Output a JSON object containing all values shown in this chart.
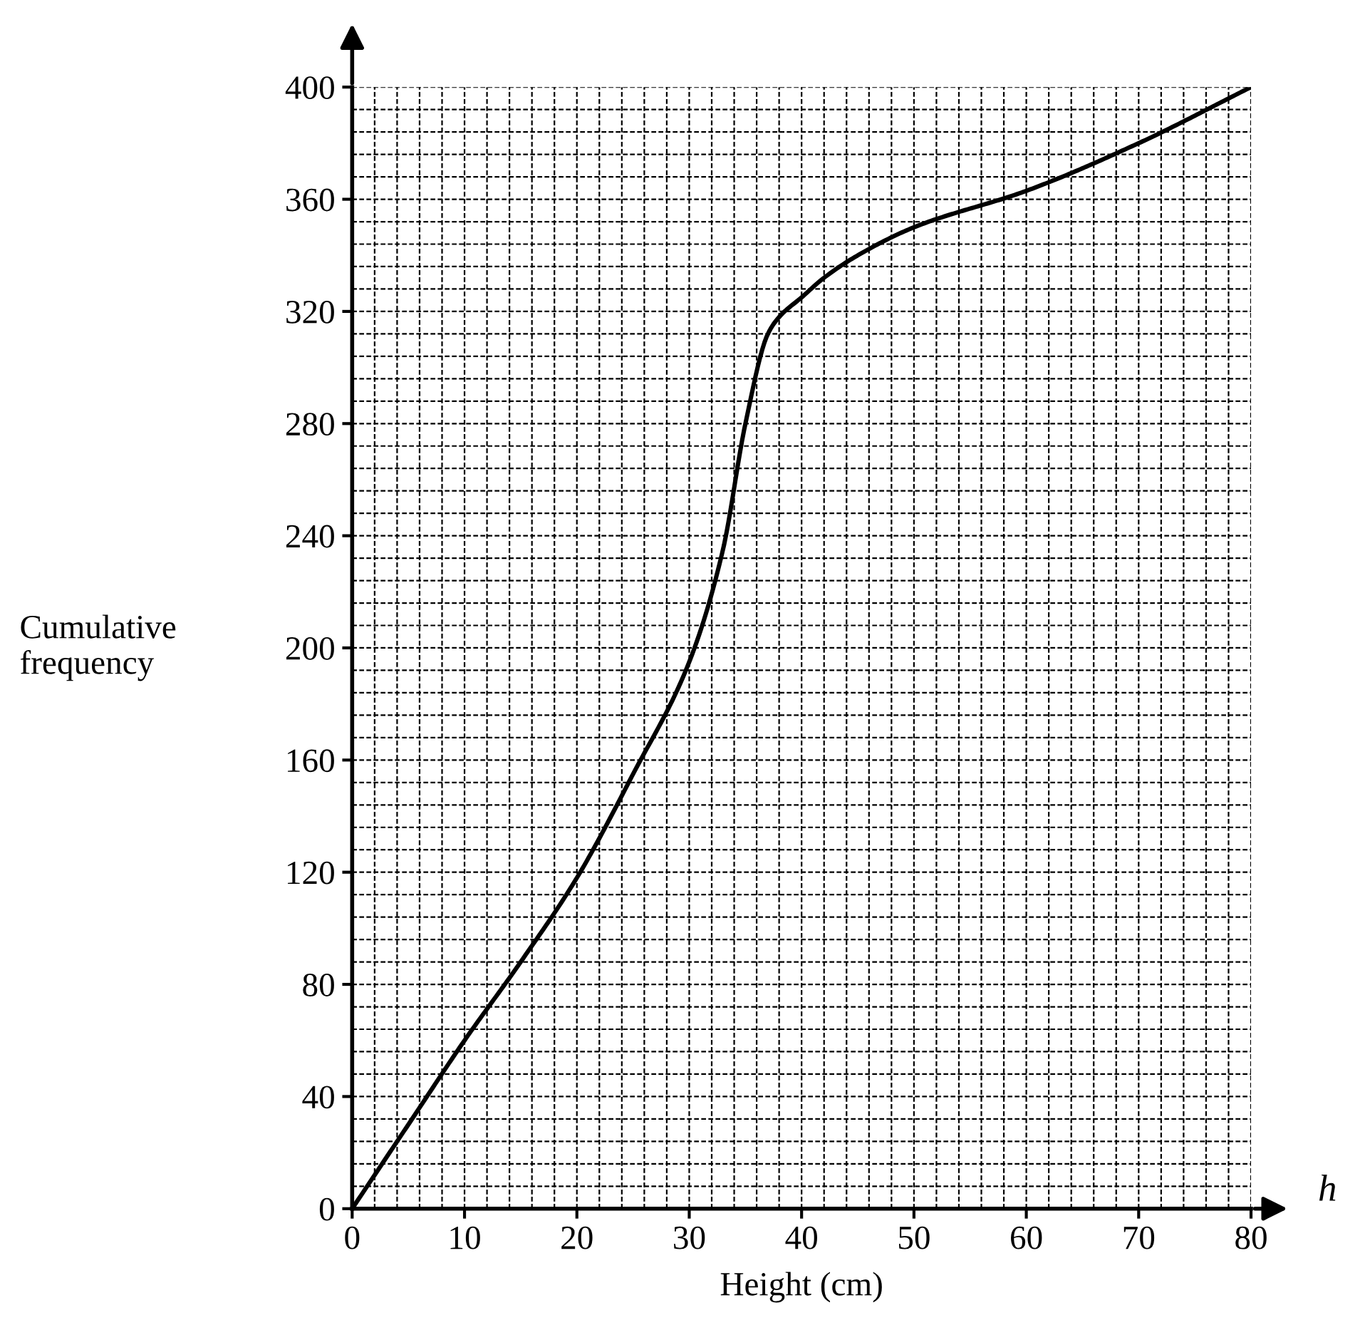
{
  "chart_data": {
    "type": "line",
    "xlabel": "Height (cm)",
    "ylabel": "Cumulative\nfrequency",
    "annotations": [
      "h"
    ],
    "x": [
      0,
      5,
      10,
      15,
      20,
      25,
      30,
      33,
      35,
      37,
      38,
      40,
      42,
      45,
      50,
      60,
      70,
      80
    ],
    "series": [
      {
        "color": "#000000",
        "values": [
          0,
          30,
          60,
          88,
          118,
          155,
          195,
          235,
          280,
          312,
          318,
          325,
          332,
          340,
          350,
          363,
          380,
          400
        ]
      }
    ],
    "xlim": [
      0,
      80
    ],
    "ylim": [
      0,
      400
    ],
    "xticks": [
      0,
      10,
      20,
      30,
      40,
      50,
      60,
      70,
      80
    ],
    "yticks": [
      0,
      40,
      80,
      120,
      160,
      200,
      240,
      280,
      320,
      360,
      400
    ],
    "grid": true,
    "legend": false,
    "marker": "none",
    "line_style": "solid"
  }
}
